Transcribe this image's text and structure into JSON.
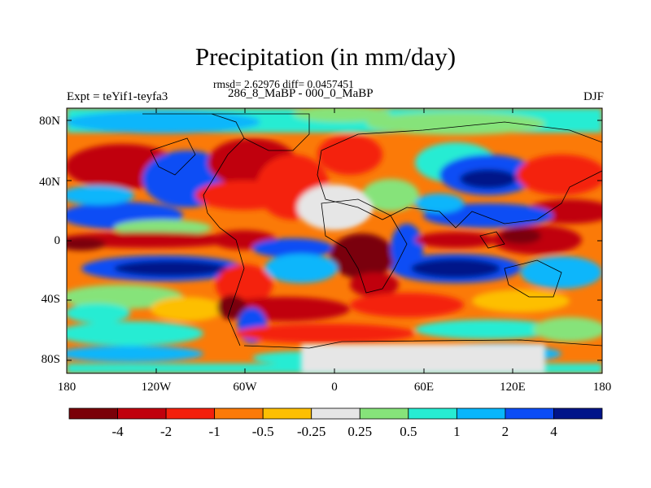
{
  "title": "Precipitation (in mm/day)",
  "stats_line": "rmsd= 2.62976 diff= 0.0457451",
  "experiment_label": "Expt = teYif1-teyfa3",
  "periods_label": "286_8_MaBP - 000_0_MaBP",
  "season_label": "DJF",
  "lat_ticks": [
    "80N",
    "40N",
    "0",
    "40S",
    "80S"
  ],
  "lon_ticks": [
    "180",
    "120W",
    "60W",
    "0",
    "60E",
    "120E",
    "180"
  ],
  "colorbar": {
    "colors": [
      "#7a0008",
      "#c0000d",
      "#f4200c",
      "#fb7a08",
      "#fdbf02",
      "#e6e6e6",
      "#86e37a",
      "#27ecd3",
      "#08b6fb",
      "#0c4df5",
      "#001489"
    ],
    "labels": [
      "-4",
      "-2",
      "-1",
      "-0.5",
      "-0.25",
      "0.25",
      "0.5",
      "1",
      "2",
      "4"
    ]
  }
}
